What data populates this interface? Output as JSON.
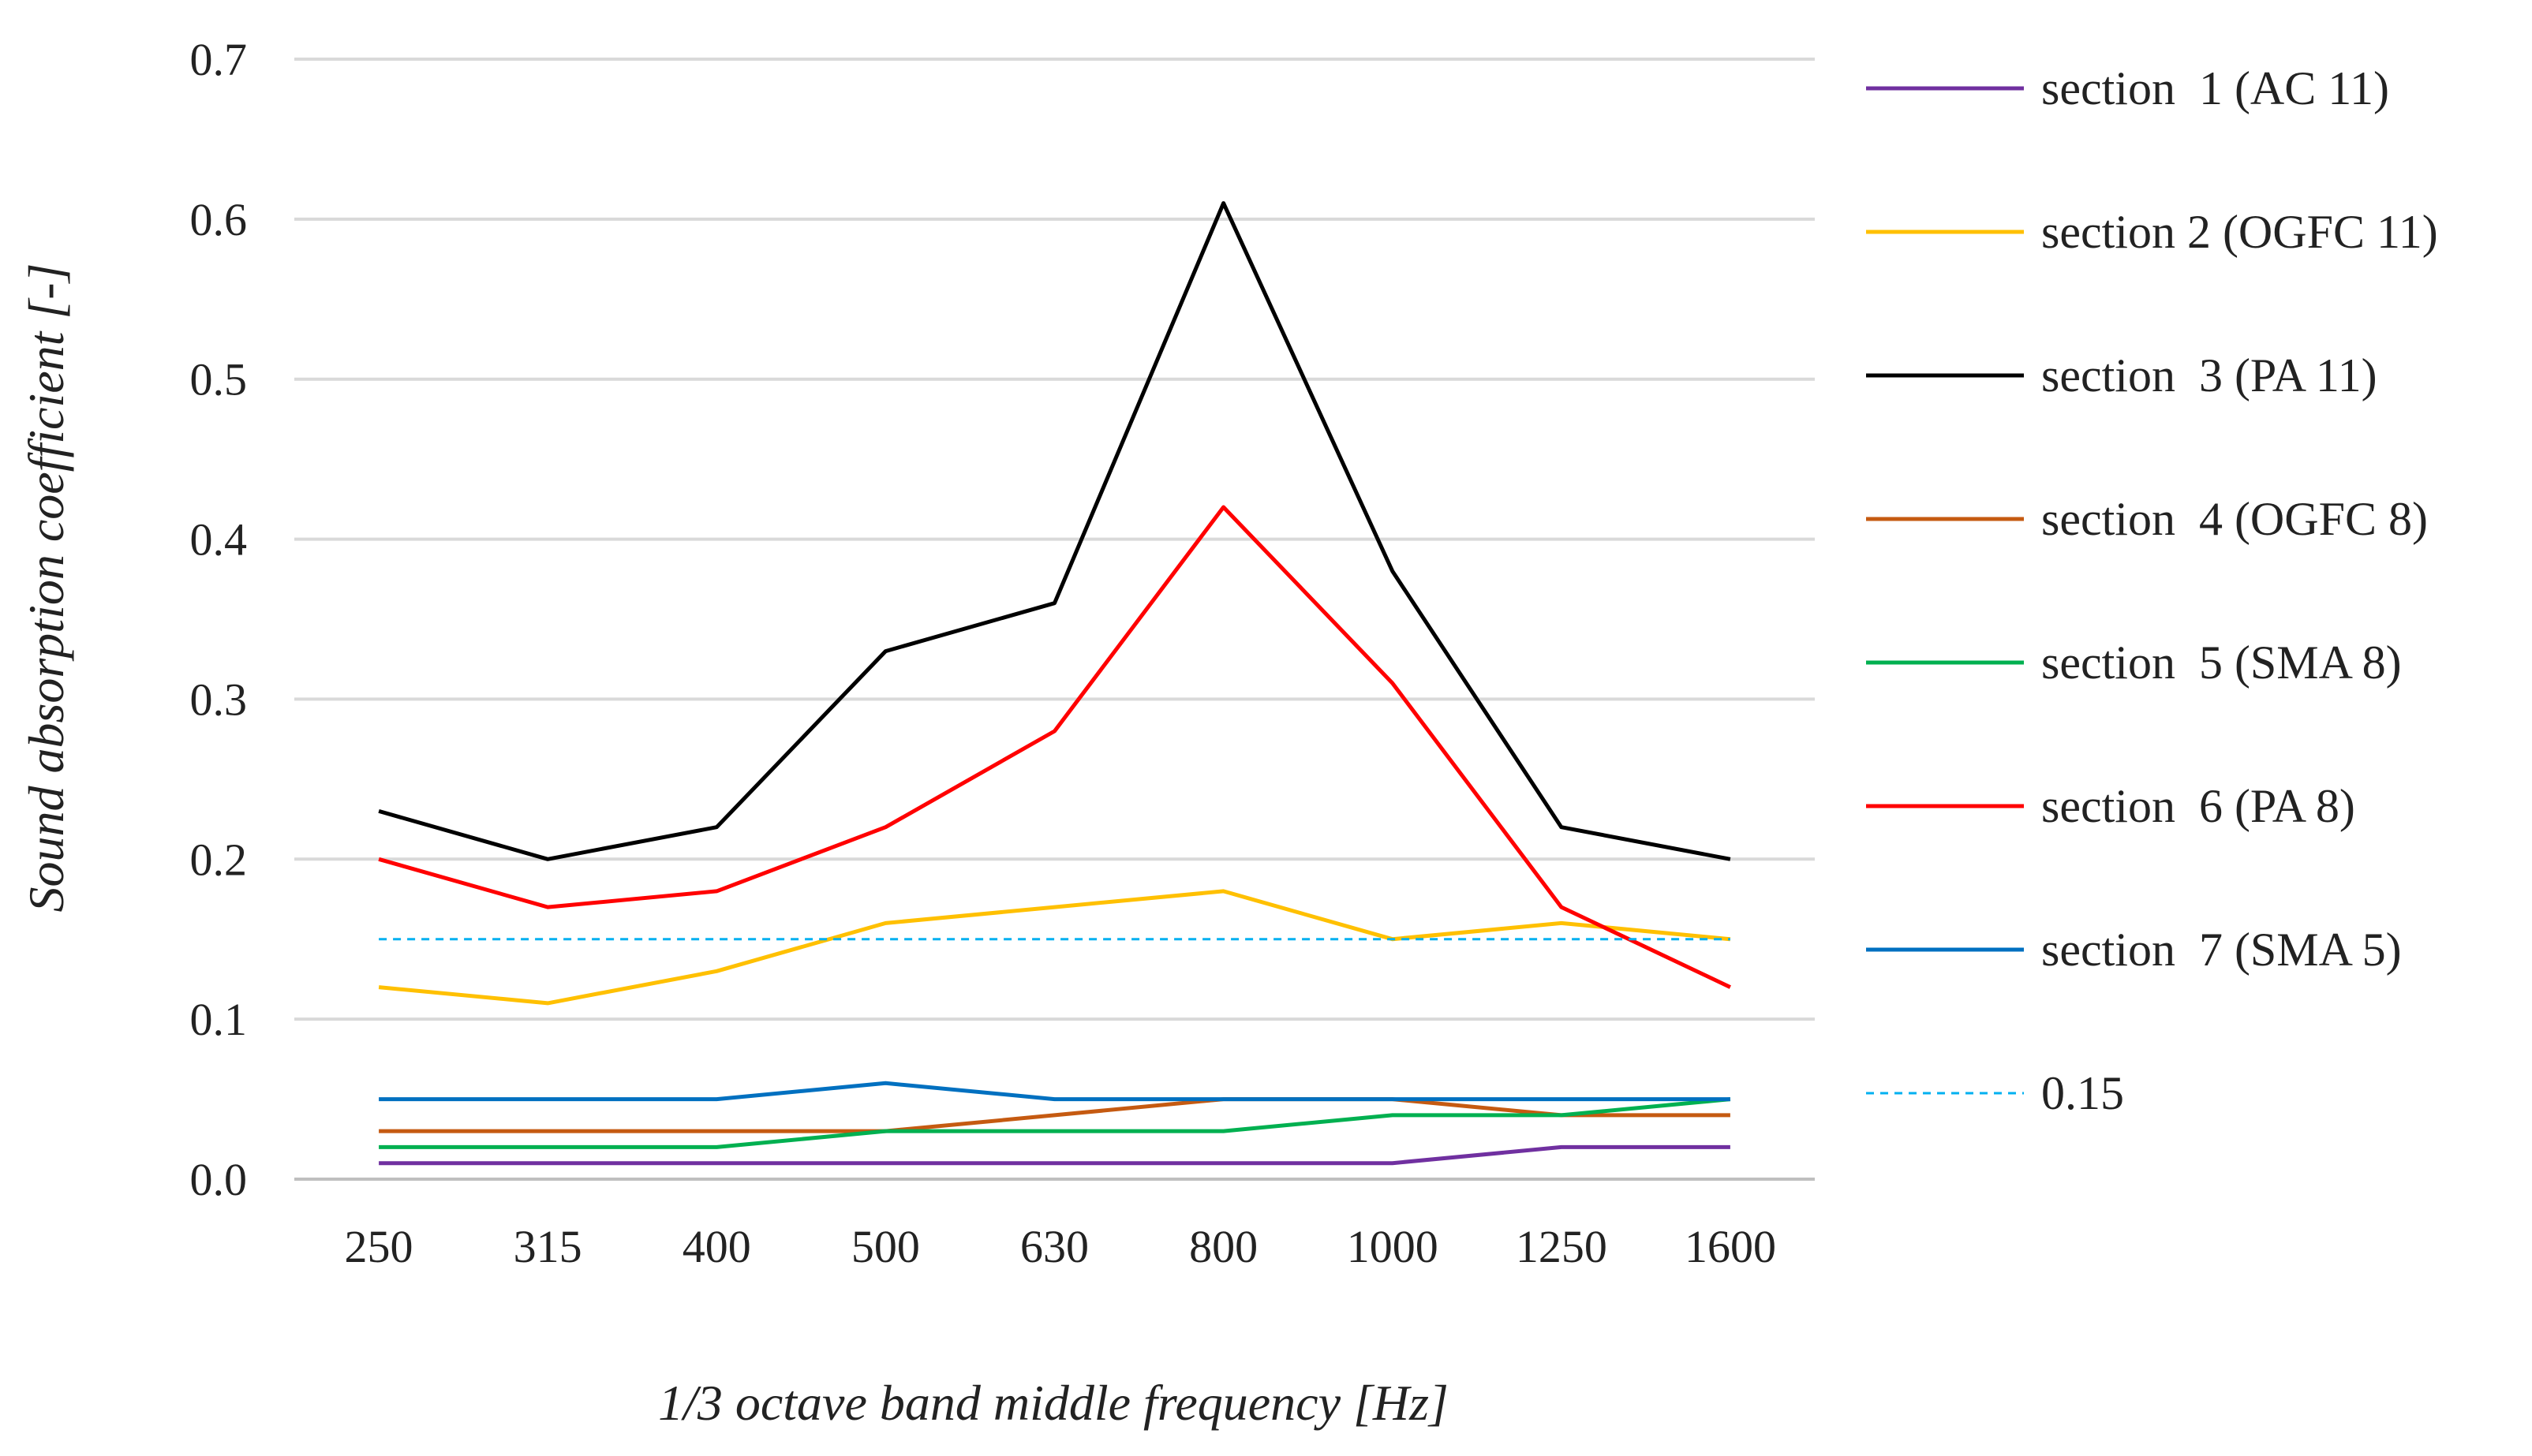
{
  "chart_data": {
    "type": "line",
    "title": "",
    "xlabel": "1/3 octave band middle frequency [Hz]",
    "ylabel": "Sound absorption coefficient [-]",
    "categories": [
      "250",
      "315",
      "400",
      "500",
      "630",
      "800",
      "1000",
      "1250",
      "1600"
    ],
    "ylim": [
      0,
      0.7
    ],
    "yticks": [
      "0.0",
      "0.1",
      "0.2",
      "0.3",
      "0.4",
      "0.5",
      "0.6",
      "0.7"
    ],
    "grid": true,
    "legend_position": "right",
    "series": [
      {
        "name": "section  1 (AC 11)",
        "color": "#7030A0",
        "dashed": false,
        "values": [
          0.01,
          0.01,
          0.01,
          0.01,
          0.01,
          0.01,
          0.01,
          0.02,
          0.02
        ]
      },
      {
        "name": "section 2 (OGFC 11)",
        "color": "#FFC000",
        "dashed": false,
        "values": [
          0.12,
          0.11,
          0.13,
          0.16,
          0.17,
          0.18,
          0.15,
          0.16,
          0.15
        ]
      },
      {
        "name": "section  3 (PA 11)",
        "color": "#000000",
        "dashed": false,
        "values": [
          0.23,
          0.2,
          0.22,
          0.33,
          0.36,
          0.61,
          0.38,
          0.22,
          0.2
        ]
      },
      {
        "name": "section  4 (OGFC 8)",
        "color": "#C55A11",
        "dashed": false,
        "values": [
          0.03,
          0.03,
          0.03,
          0.03,
          0.04,
          0.05,
          0.05,
          0.04,
          0.04
        ]
      },
      {
        "name": "section  5 (SMA 8)",
        "color": "#00B050",
        "dashed": false,
        "values": [
          0.02,
          0.02,
          0.02,
          0.03,
          0.03,
          0.03,
          0.04,
          0.04,
          0.05
        ]
      },
      {
        "name": "section  6 (PA 8)",
        "color": "#FF0000",
        "dashed": false,
        "values": [
          0.2,
          0.17,
          0.18,
          0.22,
          0.28,
          0.42,
          0.31,
          0.17,
          0.12
        ]
      },
      {
        "name": "section  7 (SMA 5)",
        "color": "#0070C0",
        "dashed": false,
        "values": [
          0.05,
          0.05,
          0.05,
          0.06,
          0.05,
          0.05,
          0.05,
          0.05,
          0.05
        ]
      },
      {
        "name": "0.15",
        "color": "#00B0F0",
        "dashed": true,
        "values": [
          0.15,
          0.15,
          0.15,
          0.15,
          0.15,
          0.15,
          0.15,
          0.15,
          0.15
        ]
      }
    ]
  }
}
